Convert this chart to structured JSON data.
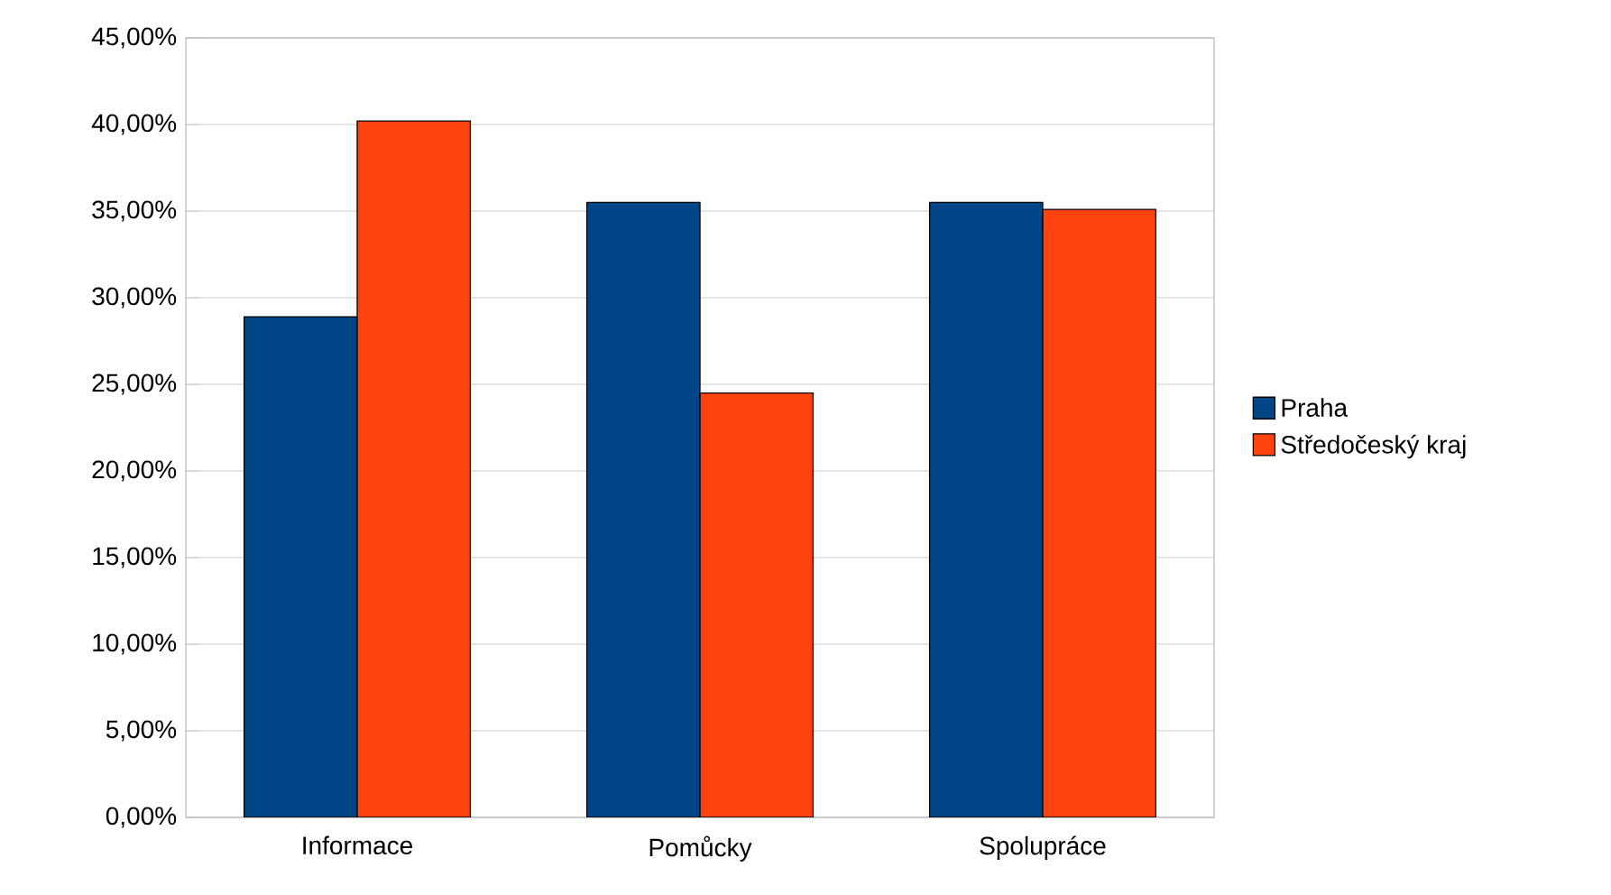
{
  "chart_data": {
    "type": "bar",
    "categories": [
      "Informace",
      "Pomůcky",
      "Spolupráce"
    ],
    "series": [
      {
        "name": "Praha",
        "color": "#004586",
        "values": [
          28.9,
          35.5,
          35.5
        ]
      },
      {
        "name": "Středočeský kraj",
        "color": "#ff420e",
        "values": [
          40.2,
          24.5,
          35.1
        ]
      }
    ],
    "ylim": [
      0,
      45
    ],
    "yticks": [
      {
        "value": 0,
        "label": "0,00%"
      },
      {
        "value": 5,
        "label": "5,00%"
      },
      {
        "value": 10,
        "label": "10,00%"
      },
      {
        "value": 15,
        "label": "15,00%"
      },
      {
        "value": 20,
        "label": "20,00%"
      },
      {
        "value": 25,
        "label": "25,00%"
      },
      {
        "value": 30,
        "label": "30,00%"
      },
      {
        "value": 35,
        "label": "35,00%"
      },
      {
        "value": 40,
        "label": "40,00%"
      },
      {
        "value": 45,
        "label": "45,00%"
      }
    ],
    "grid": "y",
    "legend": "right"
  }
}
